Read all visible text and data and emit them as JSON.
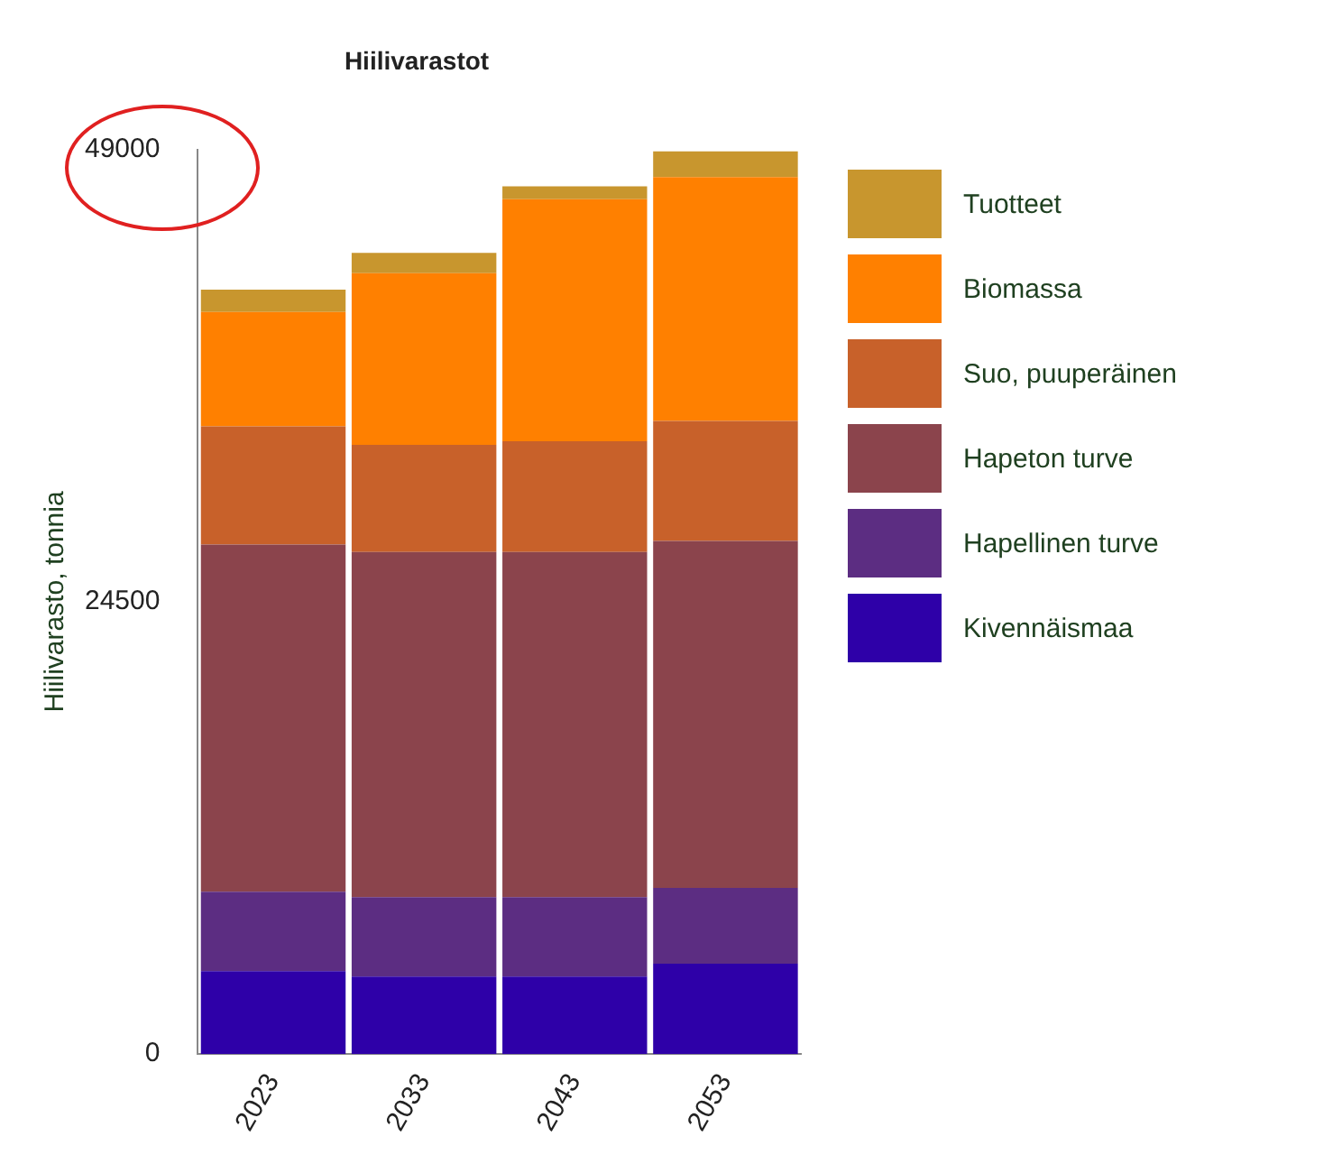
{
  "chart_data": {
    "type": "bar",
    "title": "Hiilivarastot",
    "ylabel": "Hiilivarasto, tonnia",
    "categories": [
      "2023",
      "2033",
      "2043",
      "2053"
    ],
    "stacked": true,
    "ylim": [
      0,
      49000
    ],
    "yticks": [
      0,
      24500,
      49000
    ],
    "grid": false,
    "legend": "right",
    "series": [
      {
        "name": "Kivennäismaa",
        "color": "#2e00a8",
        "values": [
          4500,
          4200,
          4200,
          4900
        ]
      },
      {
        "name": "Hapellinen turve",
        "color": "#5c2d82",
        "values": [
          4300,
          4300,
          4300,
          4100
        ]
      },
      {
        "name": "Hapeton turve",
        "color": "#8b444c",
        "values": [
          18800,
          18700,
          18700,
          18800
        ]
      },
      {
        "name": "Suo, puuperäinen",
        "color": "#c8612a",
        "values": [
          6400,
          5800,
          6000,
          6500
        ]
      },
      {
        "name": "Biomassa",
        "color": "#ff8000",
        "values": [
          6200,
          9300,
          13100,
          13200
        ]
      },
      {
        "name": "Tuotteet",
        "color": "#c8962e",
        "values": [
          1200,
          1100,
          700,
          1400
        ]
      }
    ]
  }
}
